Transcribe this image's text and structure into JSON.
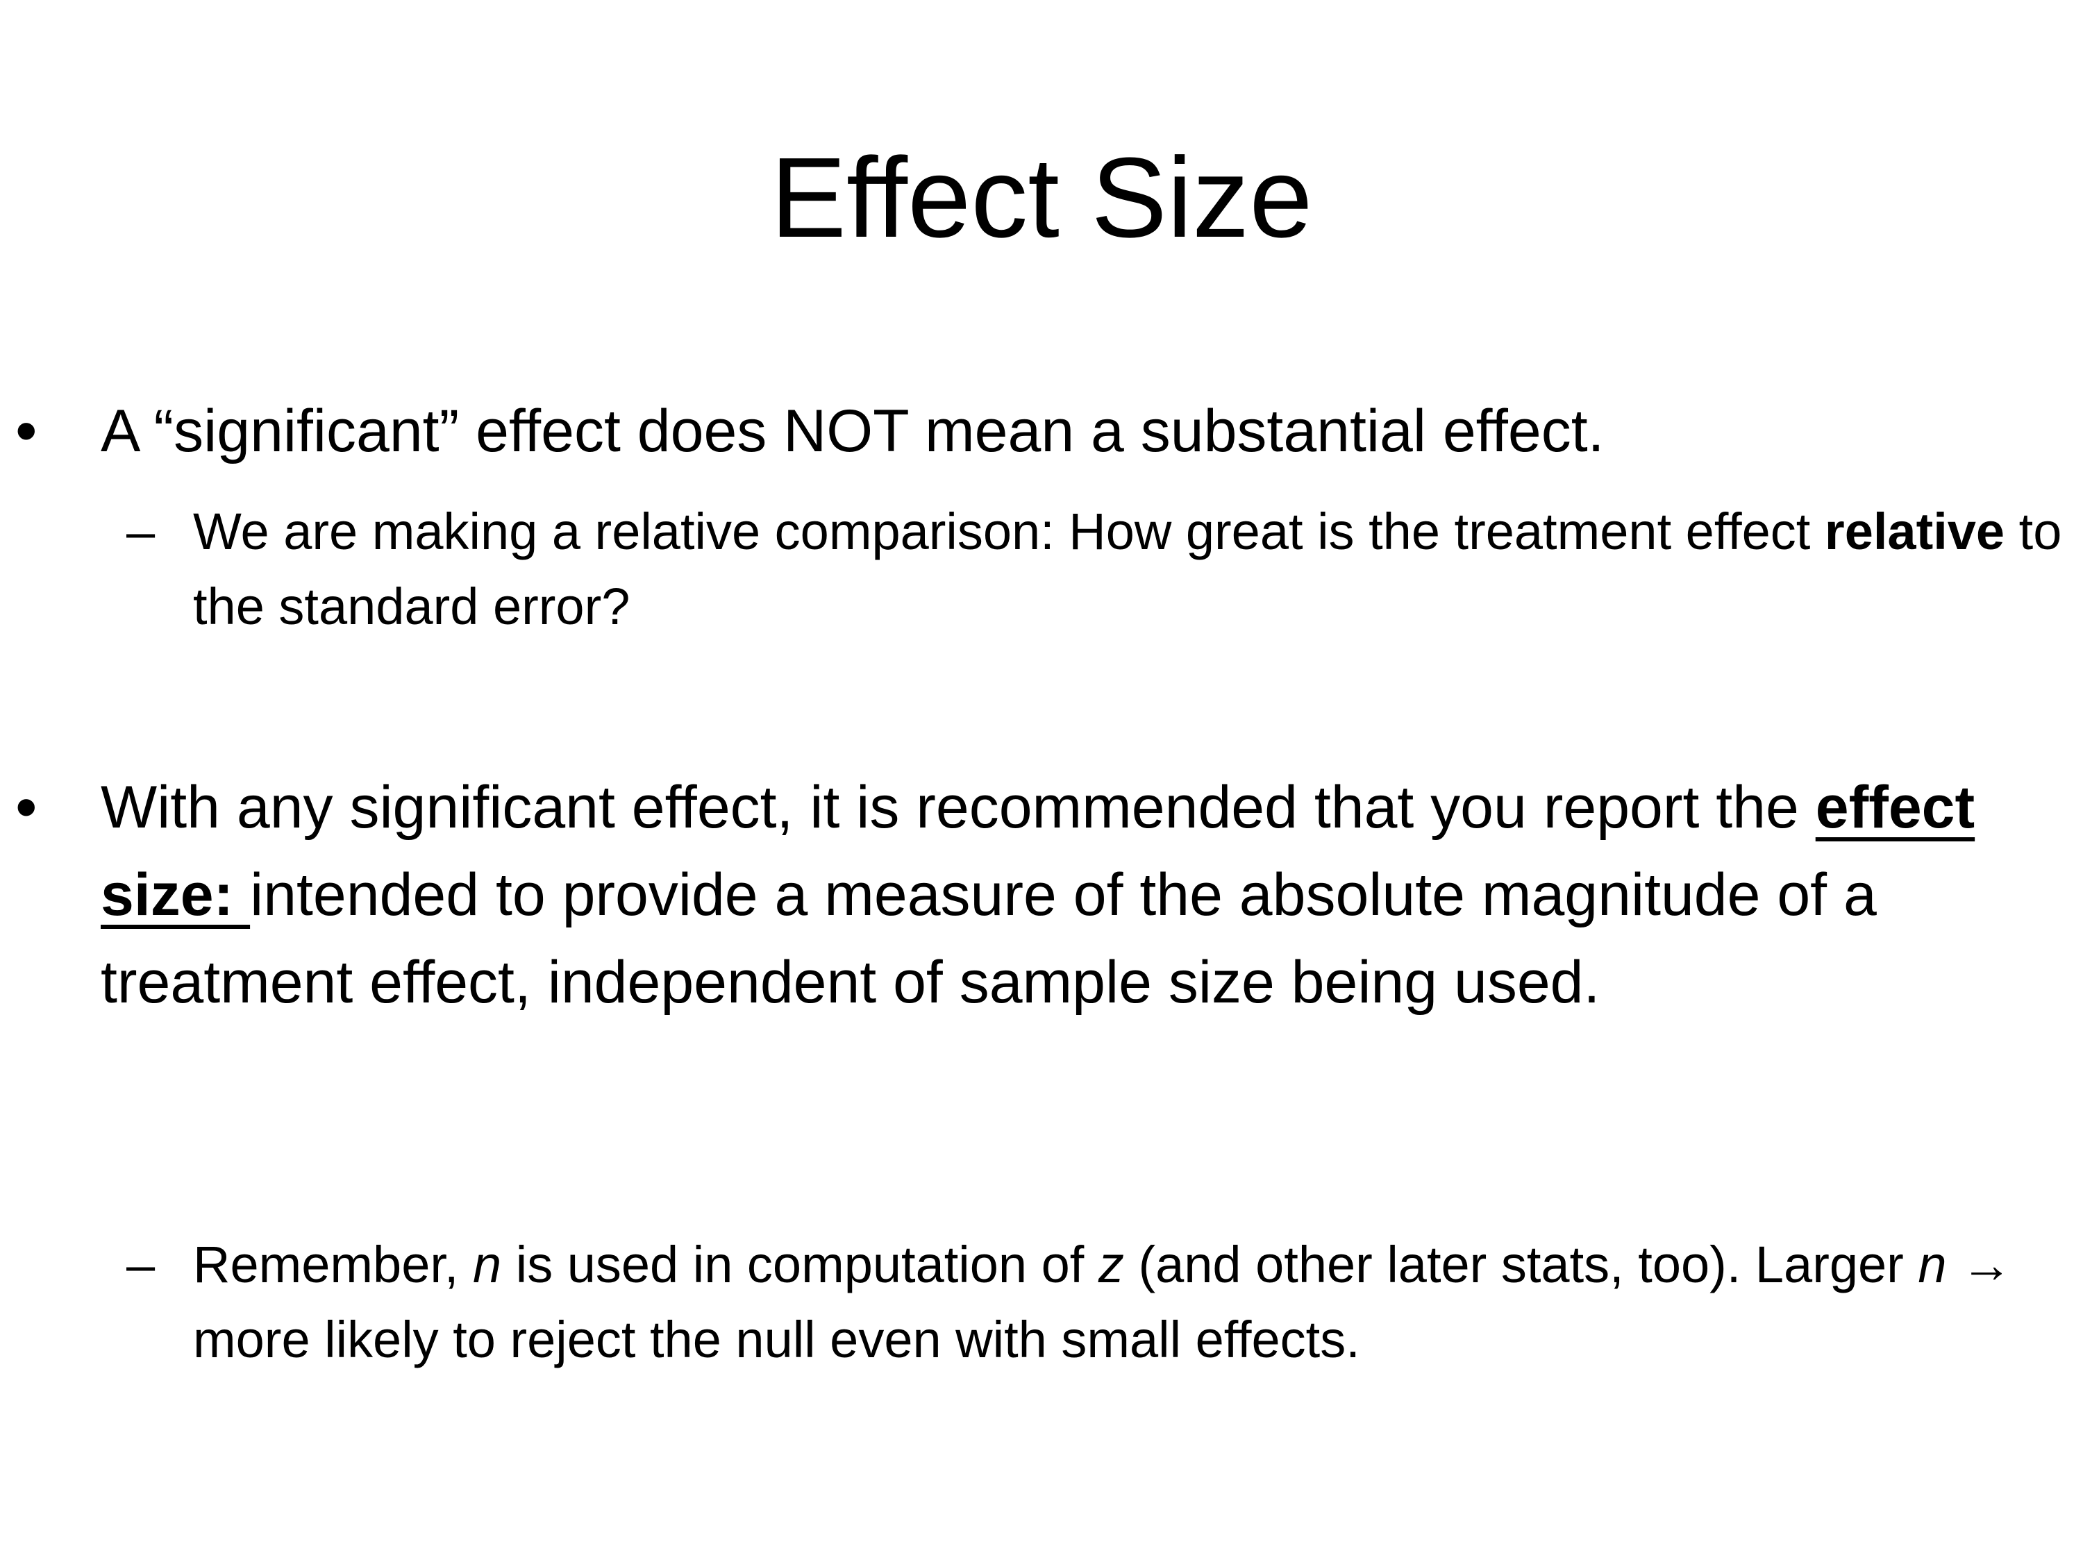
{
  "slide": {
    "title": "Effect Size",
    "bullet_marker": "•",
    "sub_marker": "–",
    "bullet1": {
      "text": "A “significant” effect does NOT mean a substantial effect."
    },
    "sub1": {
      "part1": "We are making a relative comparison: How great is the treatment effect ",
      "bold": "relative",
      "part2": " to the standard error?"
    },
    "bullet2": {
      "part1": "With any significant effect, it is recommended that you report the ",
      "term": "effect size: ",
      "part2": "intended to provide a measure of the absolute magnitude of a treatment effect, independent of sample size being used."
    },
    "sub2": {
      "part1": "Remember, ",
      "var1": "n",
      "part2": " is used in computation of ",
      "var2": "z",
      "part3": " (and other later stats, too). Larger ",
      "var3": "n",
      "arrow": " → ",
      "part4": "more likely to reject the null even with small effects."
    }
  }
}
